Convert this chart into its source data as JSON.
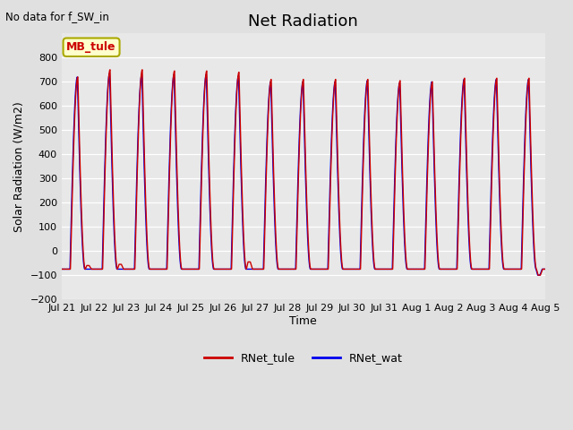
{
  "title": "Net Radiation",
  "xlabel": "Time",
  "ylabel": "Solar Radiation (W/m2)",
  "ylim": [
    -200,
    900
  ],
  "yticks": [
    -200,
    -100,
    0,
    100,
    200,
    300,
    400,
    500,
    600,
    700,
    800
  ],
  "background_color": "#e0e0e0",
  "plot_bg_color": "#e8e8e8",
  "line_color_tule": "#cc0000",
  "line_color_wat": "#0000ee",
  "legend_label_tule": "RNet_tule",
  "legend_label_wat": "RNet_wat",
  "annotation_text": "No data for f_SW_in",
  "legend_box_text": "MB_tule",
  "legend_box_color": "#ffffcc",
  "legend_box_edge": "#aaa800",
  "n_days": 15,
  "peak_values_tule": [
    720,
    750,
    750,
    745,
    745,
    740,
    710,
    710,
    710,
    710,
    705,
    700,
    715,
    715,
    715
  ],
  "peak_values_wat": [
    720,
    735,
    730,
    730,
    730,
    725,
    700,
    700,
    700,
    705,
    695,
    700,
    710,
    710,
    710
  ],
  "night_val": -75,
  "evening_dip_tule": [
    -60,
    -55,
    -75,
    -75,
    -75,
    -45,
    -75,
    -75,
    -75,
    -75,
    -75,
    -75,
    -75,
    -75,
    -100
  ],
  "evening_dip_wat": [
    -75,
    -75,
    -75,
    -75,
    -75,
    -75,
    -75,
    -75,
    -75,
    -75,
    -75,
    -75,
    -75,
    -75,
    -100
  ],
  "samples_per_day": 288,
  "title_fontsize": 13,
  "label_fontsize": 9,
  "tick_fontsize": 8,
  "linewidth": 1.0
}
